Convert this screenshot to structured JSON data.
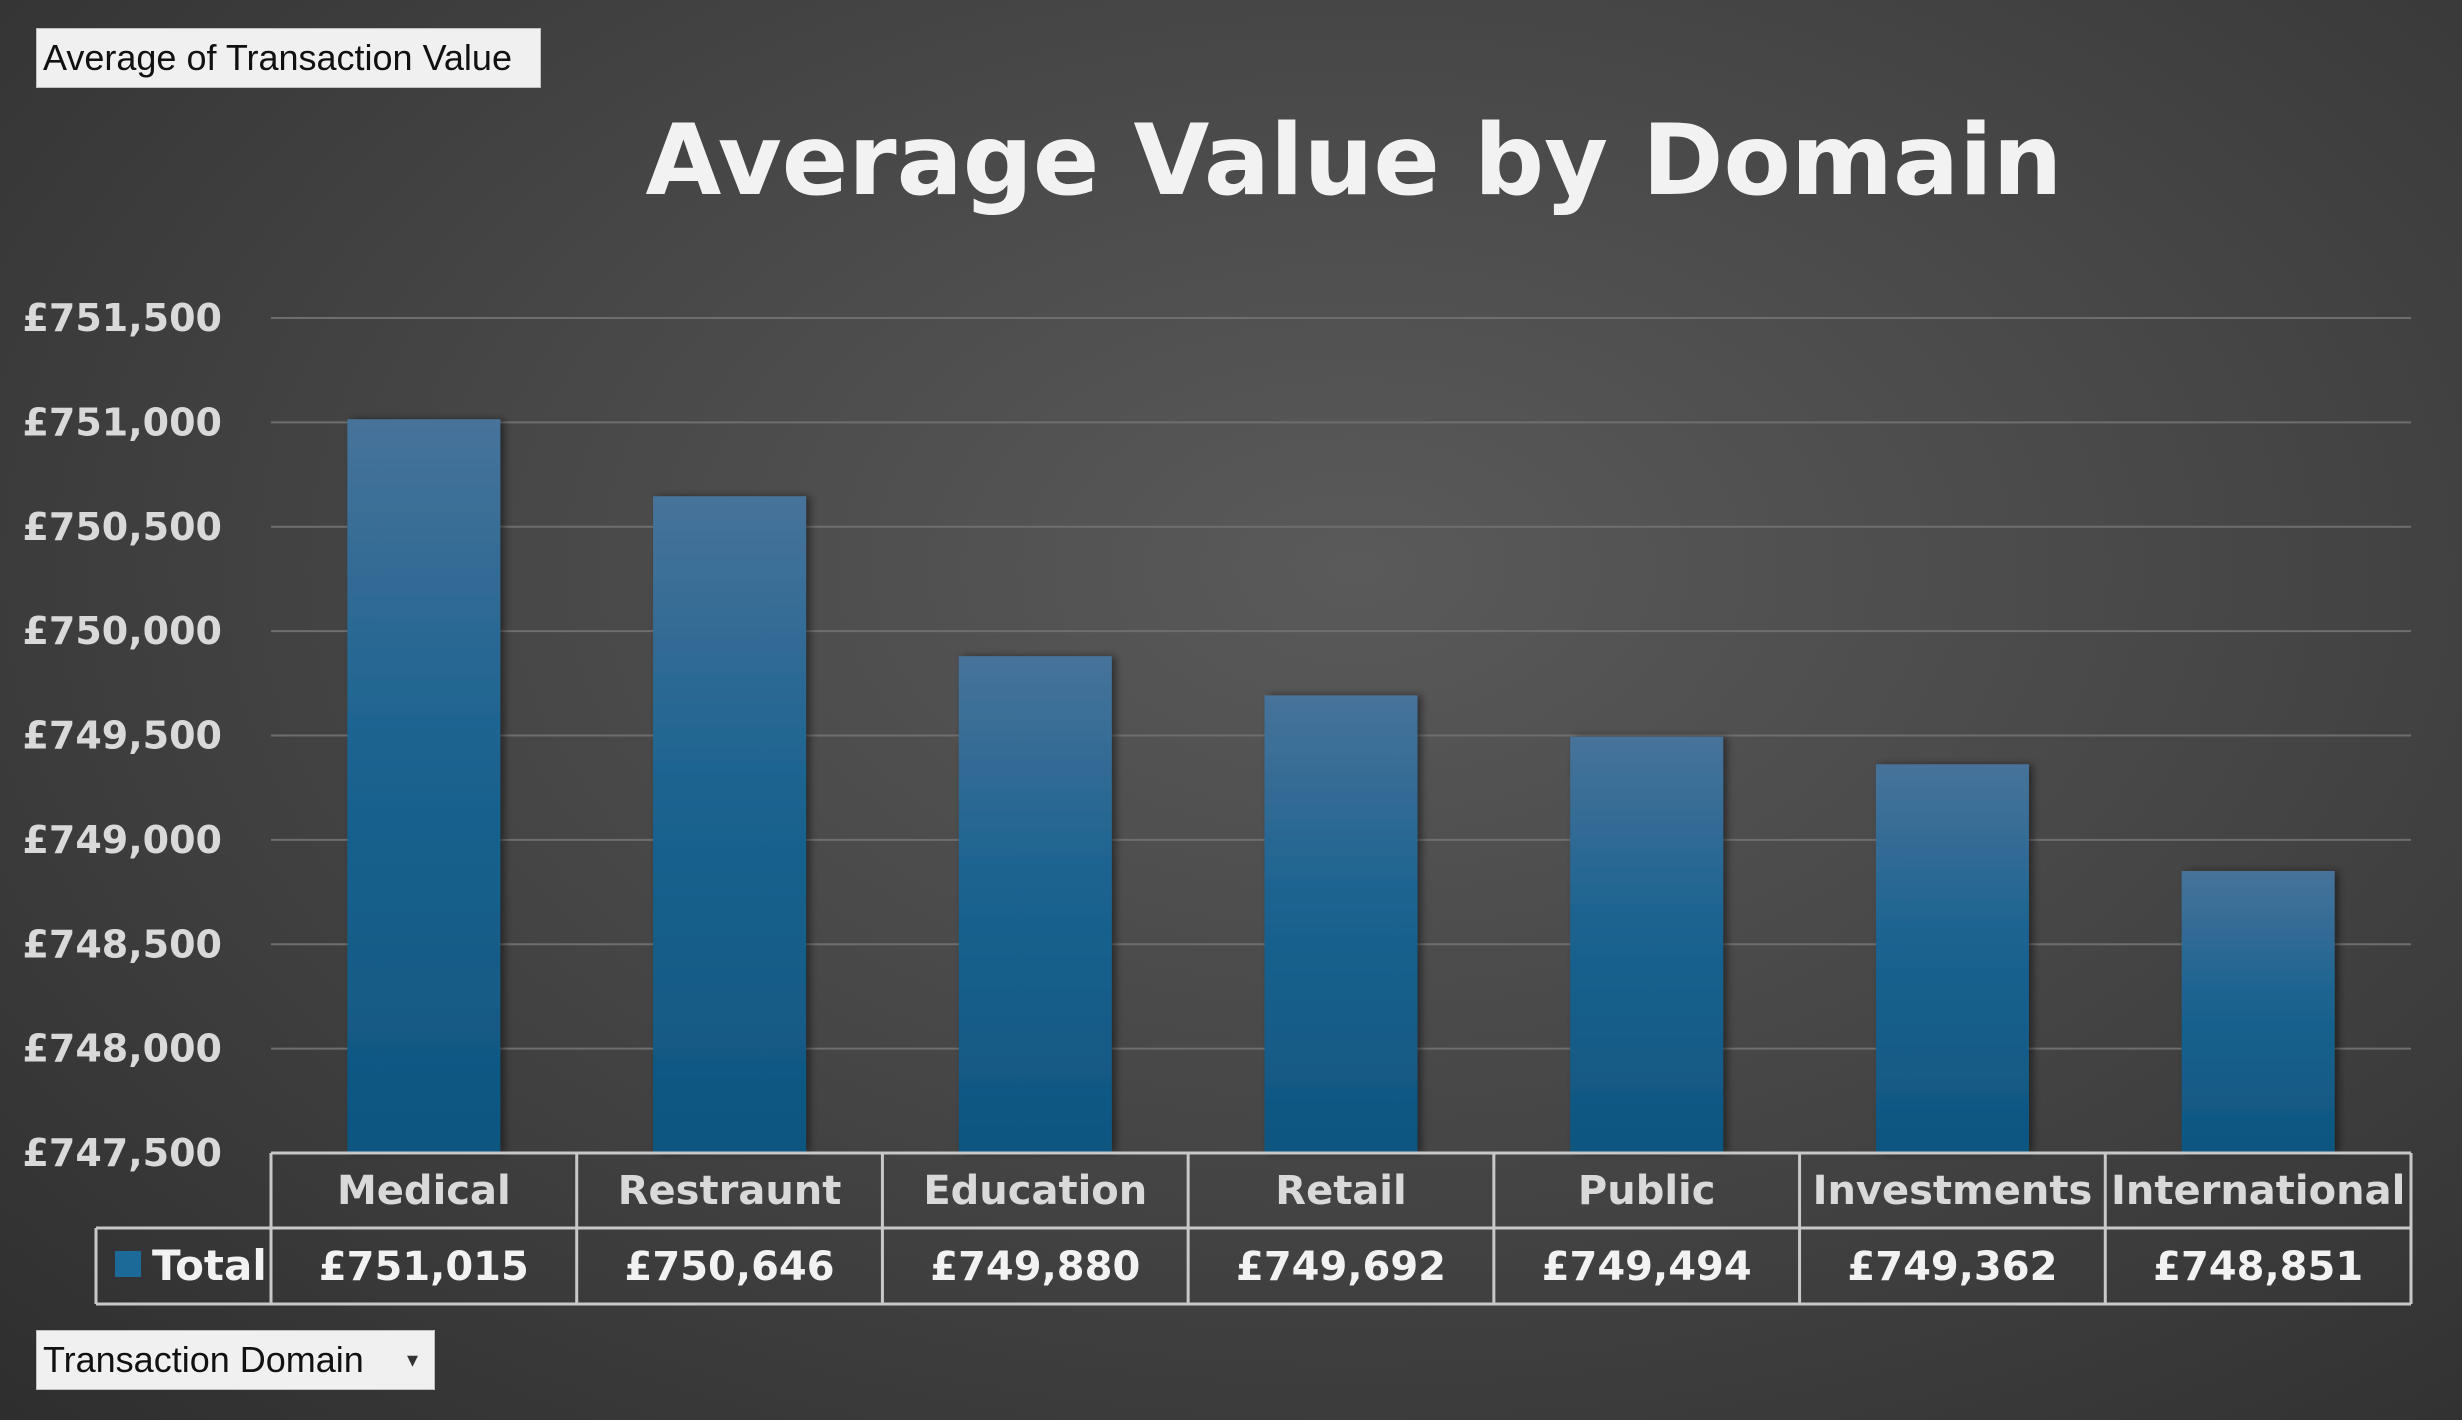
{
  "pivot": {
    "value_field": "Average  of  Transaction  Value",
    "row_field": "Transaction  Domain",
    "row_field_arrow": "▾"
  },
  "chart_data": {
    "type": "bar",
    "title": "Average Value by Domain",
    "categories": [
      "Medical",
      "Restraunt",
      "Education",
      "Retail",
      "Public",
      "Investments",
      "International"
    ],
    "series": [
      {
        "name": "Total",
        "values": [
          751015,
          750646,
          749880,
          749692,
          749494,
          749362,
          748851
        ],
        "labels": [
          "£751,015",
          "£750,646",
          "£749,880",
          "£749,692",
          "£749,494",
          "£749,362",
          "£748,851"
        ]
      }
    ],
    "ylim": [
      747500,
      751500
    ],
    "y_ticks": [
      747500,
      748000,
      748500,
      749000,
      749500,
      750000,
      750500,
      751000,
      751500
    ],
    "y_tick_labels": [
      "£747,500",
      "£748,000",
      "£748,500",
      "£749,000",
      "£749,500",
      "£750,000",
      "£750,500",
      "£751,000",
      "£751,500"
    ],
    "grid": true,
    "data_table": true,
    "colors": {
      "bar_top": "#47739a",
      "bar_bottom": "#0e5680",
      "legend_swatch": "#1b6a98",
      "grid": "#6e6e6e",
      "table_border": "#c8c8c8"
    }
  }
}
